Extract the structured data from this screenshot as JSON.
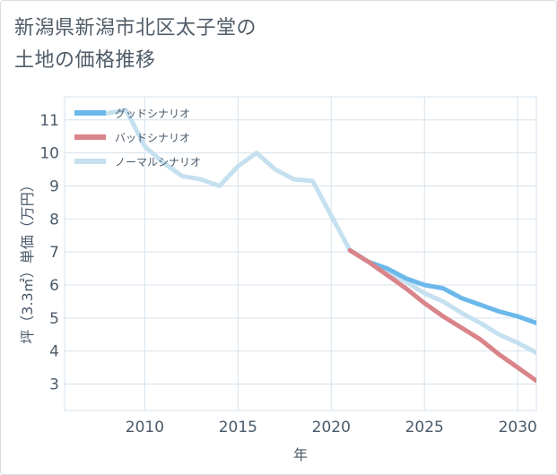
{
  "title_lines": [
    "新潟県新潟市北区太子堂の",
    "土地の価格推移"
  ],
  "colors": {
    "good": "#6bb8ea",
    "bad": "#d9848a",
    "normal": "#c5e0ef",
    "grid": "#d6e2ec"
  },
  "chart_data": {
    "type": "line",
    "title": "新潟県新潟市北区太子堂の土地の価格推移",
    "xlabel": "年",
    "ylabel": "坪（3.3㎡）単価（万円）",
    "xlim": [
      2005.7,
      2031.0
    ],
    "ylim": [
      2.2,
      11.7
    ],
    "xticks": [
      2010,
      2015,
      2020,
      2025,
      2030
    ],
    "yticks": [
      3,
      4,
      5,
      6,
      7,
      8,
      9,
      10,
      11
    ],
    "legend_position": "top-left",
    "series": [
      {
        "name": "グッドシナリオ",
        "color_key": "good",
        "x": [
          2021,
          2022,
          2023,
          2024,
          2025,
          2026,
          2027,
          2028,
          2029,
          2030,
          2031
        ],
        "y": [
          7.05,
          6.7,
          6.5,
          6.2,
          6.0,
          5.9,
          5.6,
          5.4,
          5.2,
          5.05,
          4.85
        ]
      },
      {
        "name": "バッドシナリオ",
        "color_key": "bad",
        "x": [
          2021,
          2022,
          2023,
          2024,
          2025,
          2026,
          2027,
          2028,
          2029,
          2030,
          2031
        ],
        "y": [
          7.05,
          6.7,
          6.3,
          5.9,
          5.45,
          5.05,
          4.7,
          4.35,
          3.9,
          3.5,
          3.1
        ]
      },
      {
        "name": "ノーマルシナリオ",
        "color_key": "normal",
        "x": [
          2008,
          2009,
          2010,
          2011,
          2012,
          2013,
          2014,
          2015,
          2016,
          2017,
          2018,
          2019,
          2020,
          2021,
          2022,
          2023,
          2024,
          2025,
          2026,
          2027,
          2028,
          2029,
          2030,
          2031
        ],
        "y": [
          11.2,
          11.3,
          10.2,
          9.7,
          9.3,
          9.2,
          9.0,
          9.6,
          10.0,
          9.5,
          9.2,
          9.15,
          8.1,
          7.05,
          6.7,
          6.4,
          6.1,
          5.75,
          5.5,
          5.15,
          4.85,
          4.5,
          4.25,
          3.95
        ]
      }
    ]
  }
}
